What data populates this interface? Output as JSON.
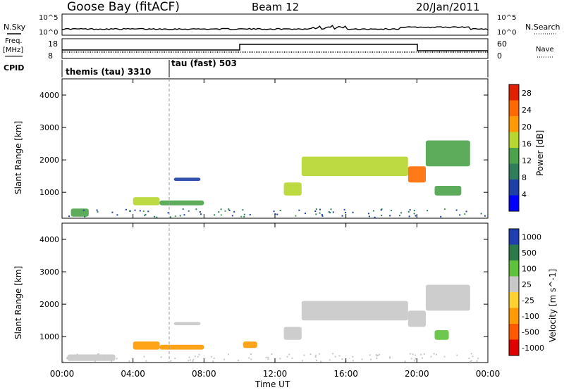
{
  "header": {
    "station": "Goose Bay (fitACF)",
    "beam": "Beam 12",
    "date": "20/Jan/2011"
  },
  "top_strip": {
    "left_label": "N.Sky",
    "right_label": "N.Search",
    "left_ticks": [
      "10^5",
      "10^0"
    ],
    "right_ticks": [
      "10^5",
      "10^0"
    ]
  },
  "freq_strip": {
    "left_label_1": "Freq.",
    "left_label_2": "[MHz]",
    "left_ticks": [
      "18",
      "8"
    ],
    "right_label": "Nave",
    "right_ticks": [
      "60",
      "0"
    ]
  },
  "cpid": {
    "label": "CPID",
    "segments": [
      {
        "name": "themis (tau) 3310",
        "start_hour": 0
      },
      {
        "name": "tau (fast) 503",
        "start_hour": 6
      }
    ]
  },
  "colors": {
    "power_scale": [
      "#0000ff",
      "#1c3fa8",
      "#2e7d5b",
      "#4aa34a",
      "#b7d62e",
      "#ff9a00",
      "#ff6a00",
      "#e02000"
    ],
    "velocity_scale": [
      "#1f3fb0",
      "#2a7a4a",
      "#5ec23a",
      "#c8c8c8",
      "#ffd030",
      "#ff9a00",
      "#ff5a00",
      "#e00000"
    ],
    "grey_band": "#c8c8c8"
  },
  "chart_data": [
    {
      "type": "heatmap",
      "title": "Power [dB]",
      "ylabel": "Slant Range [km]",
      "xlabel": "Time UT",
      "x_ticks": [
        "00:00",
        "04:00",
        "08:00",
        "12:00",
        "16:00",
        "20:00",
        "00:00"
      ],
      "y_ticks": [
        "1000",
        "2000",
        "3000",
        "4000"
      ],
      "ylim": [
        200,
        4500
      ],
      "xlim_hours": [
        0,
        24
      ],
      "colorbar_label": "Power [dB]",
      "colorbar_ticks": [
        "4",
        "8",
        "12",
        "16",
        "20",
        "24",
        "28"
      ],
      "clim": [
        0,
        30
      ],
      "echo_regions": [
        {
          "t_start": 0.5,
          "t_end": 1.5,
          "r_start": 250,
          "r_end": 500,
          "level": 12
        },
        {
          "t_start": 4.0,
          "t_end": 5.5,
          "r_start": 600,
          "r_end": 850,
          "level": 18
        },
        {
          "t_start": 5.5,
          "t_end": 8.0,
          "r_start": 600,
          "r_end": 750,
          "level": 14
        },
        {
          "t_start": 6.3,
          "t_end": 7.8,
          "r_start": 1350,
          "r_end": 1450,
          "level": 6
        },
        {
          "t_start": 12.5,
          "t_end": 13.5,
          "r_start": 900,
          "r_end": 1300,
          "level": 18
        },
        {
          "t_start": 13.5,
          "t_end": 19.5,
          "r_start": 1500,
          "r_end": 2100,
          "level": 16
        },
        {
          "t_start": 19.5,
          "t_end": 20.5,
          "r_start": 1300,
          "r_end": 1800,
          "level": 26
        },
        {
          "t_start": 20.5,
          "t_end": 23.0,
          "r_start": 1800,
          "r_end": 2600,
          "level": 12
        },
        {
          "t_start": 21.0,
          "t_end": 22.5,
          "r_start": 900,
          "r_end": 1200,
          "level": 14
        }
      ]
    },
    {
      "type": "heatmap",
      "title": "Velocity [m s^-1]",
      "ylabel": "Slant Range [km]",
      "xlabel": "Time UT",
      "x_ticks": [
        "00:00",
        "04:00",
        "08:00",
        "12:00",
        "16:00",
        "20:00",
        "00:00"
      ],
      "y_ticks": [
        "1000",
        "2000",
        "3000",
        "4000"
      ],
      "ylim": [
        200,
        4500
      ],
      "xlim_hours": [
        0,
        24
      ],
      "colorbar_label": "Velocity [m s^-1]",
      "colorbar_ticks": [
        "1000",
        "500",
        "100",
        "25",
        "-25",
        "-100",
        "-500",
        "-1000"
      ],
      "echo_regions": [
        {
          "t_start": 0.3,
          "t_end": 3.0,
          "r_start": 250,
          "r_end": 450,
          "velocity": 0
        },
        {
          "t_start": 4.0,
          "t_end": 5.5,
          "r_start": 600,
          "r_end": 850,
          "velocity": -150
        },
        {
          "t_start": 5.5,
          "t_end": 8.0,
          "r_start": 600,
          "r_end": 750,
          "velocity": -150
        },
        {
          "t_start": 6.3,
          "t_end": 7.8,
          "r_start": 1350,
          "r_end": 1450,
          "velocity": 0
        },
        {
          "t_start": 10.2,
          "t_end": 11.0,
          "r_start": 650,
          "r_end": 850,
          "velocity": -150
        },
        {
          "t_start": 12.5,
          "t_end": 13.5,
          "r_start": 900,
          "r_end": 1300,
          "velocity": 0
        },
        {
          "t_start": 13.5,
          "t_end": 19.5,
          "r_start": 1500,
          "r_end": 2100,
          "velocity": 0
        },
        {
          "t_start": 19.5,
          "t_end": 20.5,
          "r_start": 1300,
          "r_end": 1800,
          "velocity": 0
        },
        {
          "t_start": 20.5,
          "t_end": 23.0,
          "r_start": 1800,
          "r_end": 2600,
          "velocity": 0
        },
        {
          "t_start": 21.0,
          "t_end": 21.8,
          "r_start": 900,
          "r_end": 1200,
          "velocity": 60
        }
      ]
    }
  ]
}
